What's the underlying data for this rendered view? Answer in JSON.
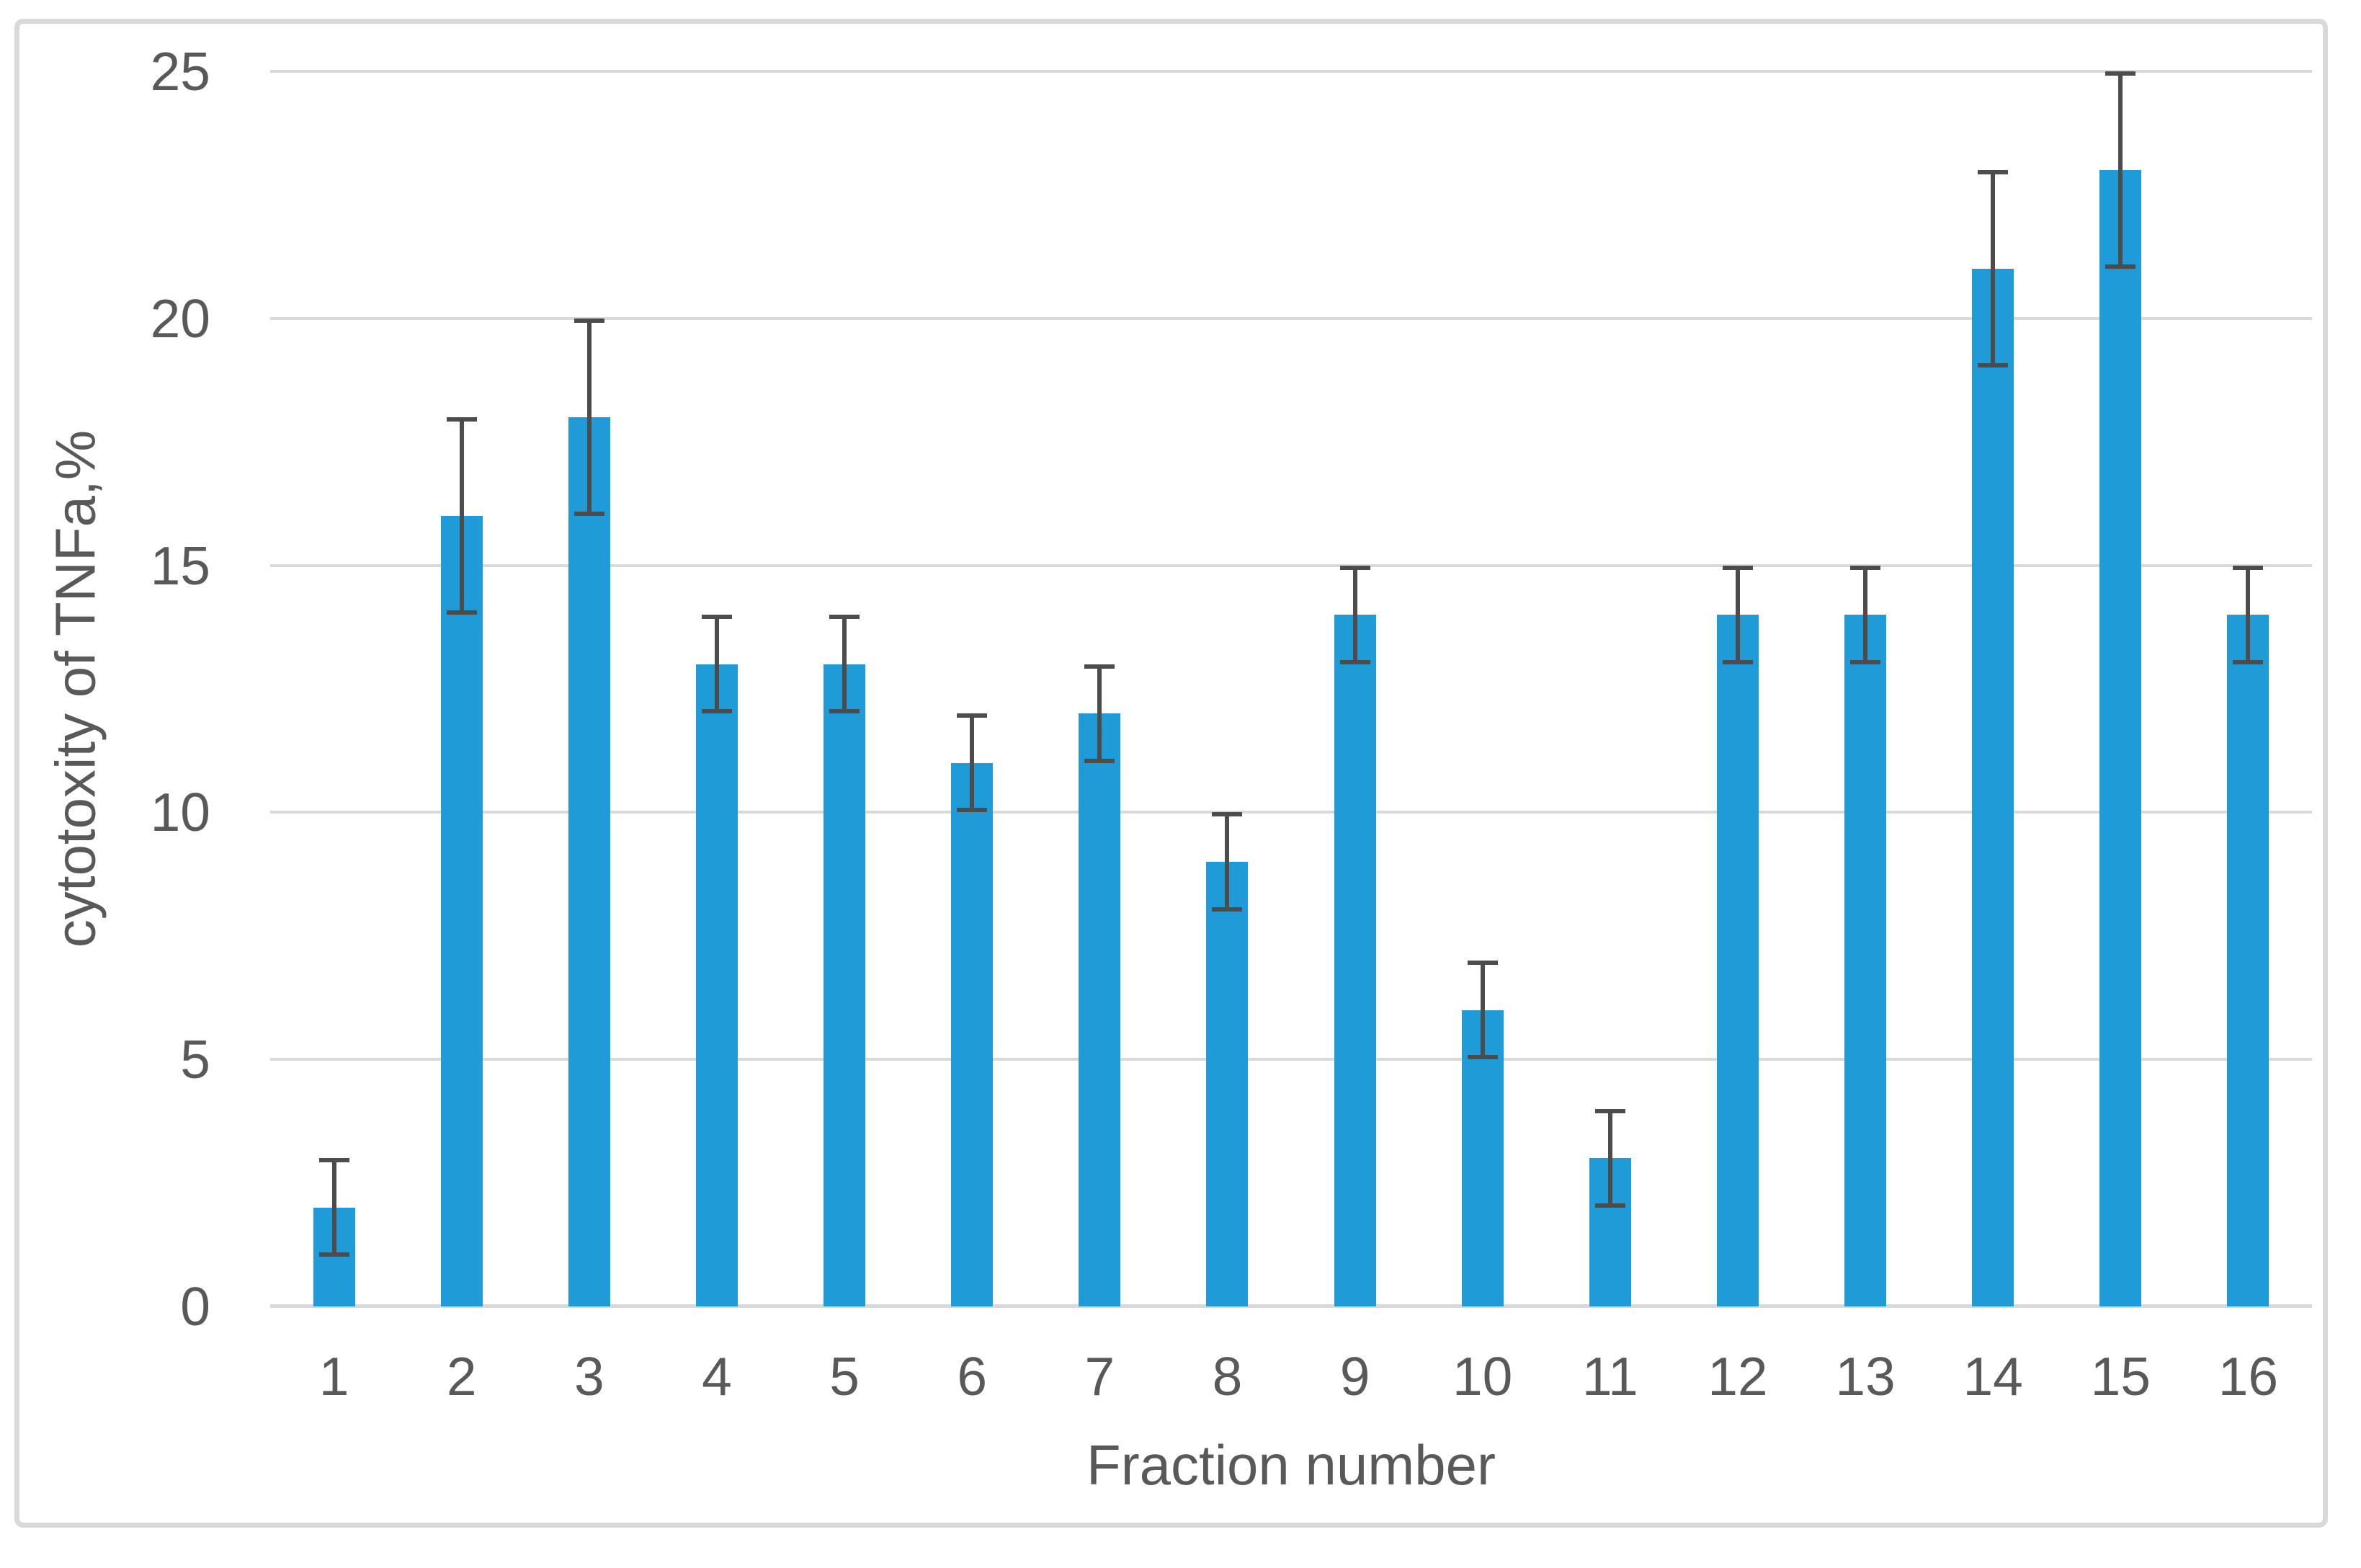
{
  "chart_data": {
    "type": "bar",
    "title": "",
    "xlabel": "Fraction number",
    "ylabel": "cytotoxity of TNFa,%",
    "categories": [
      "1",
      "2",
      "3",
      "4",
      "5",
      "6",
      "7",
      "8",
      "9",
      "10",
      "11",
      "12",
      "13",
      "14",
      "15",
      "16"
    ],
    "series": [
      {
        "name": "cytotoxity of TNFa, %",
        "values": [
          2,
          16,
          18,
          13,
          13,
          11,
          12,
          9,
          14,
          6,
          3,
          14,
          14,
          21,
          23,
          14
        ],
        "errors": [
          1,
          2,
          2,
          1,
          1,
          1,
          1,
          1,
          1,
          1,
          1,
          1,
          1,
          2,
          2,
          1
        ]
      }
    ],
    "ylim": [
      0,
      25
    ],
    "yticks": [
      0,
      5,
      10,
      15,
      20,
      25
    ],
    "grid": true,
    "legend_position": "none",
    "error_bars": "both-ends-with-caps",
    "colors": {
      "bar": "#1F9CD8",
      "error_bar": "#4C4C4C",
      "gridline": "#D9D9D9",
      "axis_line": "#D9D9D9",
      "tick_text": "#595959",
      "axis_title_text": "#595959",
      "chart_border": "#D9D9D9",
      "background": "#FFFFFF"
    }
  }
}
